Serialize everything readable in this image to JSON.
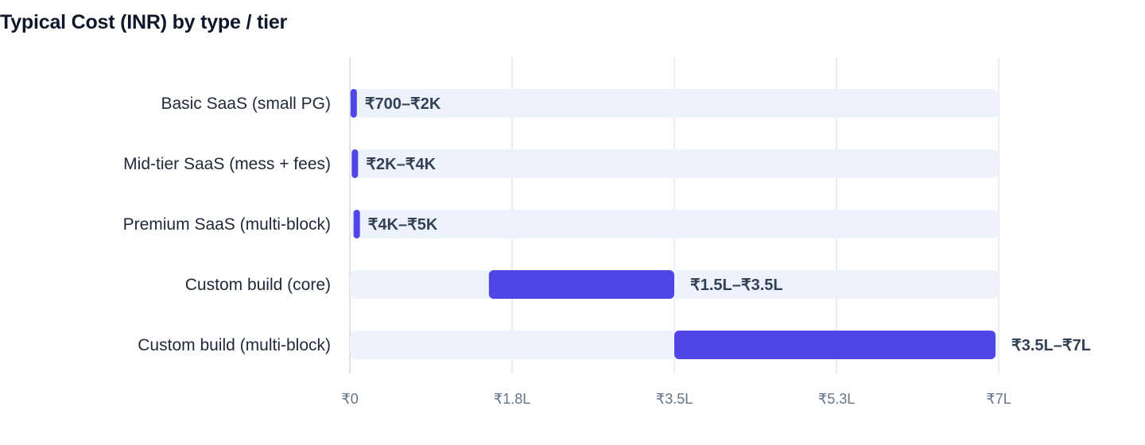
{
  "chart_data": {
    "type": "bar",
    "subtype": "floating-range-horizontal",
    "title": "Typical Cost (INR) by type / tier",
    "xlabel": "",
    "ylabel": "",
    "unit": "INR",
    "xlim": [
      0,
      700000
    ],
    "grid": true,
    "categories": [
      "Basic SaaS (small PG)",
      "Mid-tier SaaS (mess + fees)",
      "Premium SaaS (multi-block)",
      "Custom build (core)",
      "Custom build (multi-block)"
    ],
    "ranges": [
      {
        "low": 700,
        "high": 2000,
        "label": "₹700–₹2K"
      },
      {
        "low": 2000,
        "high": 4000,
        "label": "₹2K–₹4K"
      },
      {
        "low": 4000,
        "high": 5000,
        "label": "₹4K–₹5K"
      },
      {
        "low": 150000,
        "high": 350000,
        "label": "₹1.5L–₹3.5L"
      },
      {
        "low": 350000,
        "high": 700000,
        "label": "₹3.5L–₹7L"
      }
    ],
    "ticks": [
      {
        "value": 0,
        "label": "₹0"
      },
      {
        "value": 175000,
        "label": "₹1.8L"
      },
      {
        "value": 350000,
        "label": "₹3.5L"
      },
      {
        "value": 525000,
        "label": "₹5.3L"
      },
      {
        "value": 700000,
        "label": "₹7L"
      }
    ],
    "colors": {
      "bar": "#4f46e5",
      "track": "#eef2fd",
      "grid": "#e2e8f0",
      "axis": "#cbd5e1"
    }
  }
}
